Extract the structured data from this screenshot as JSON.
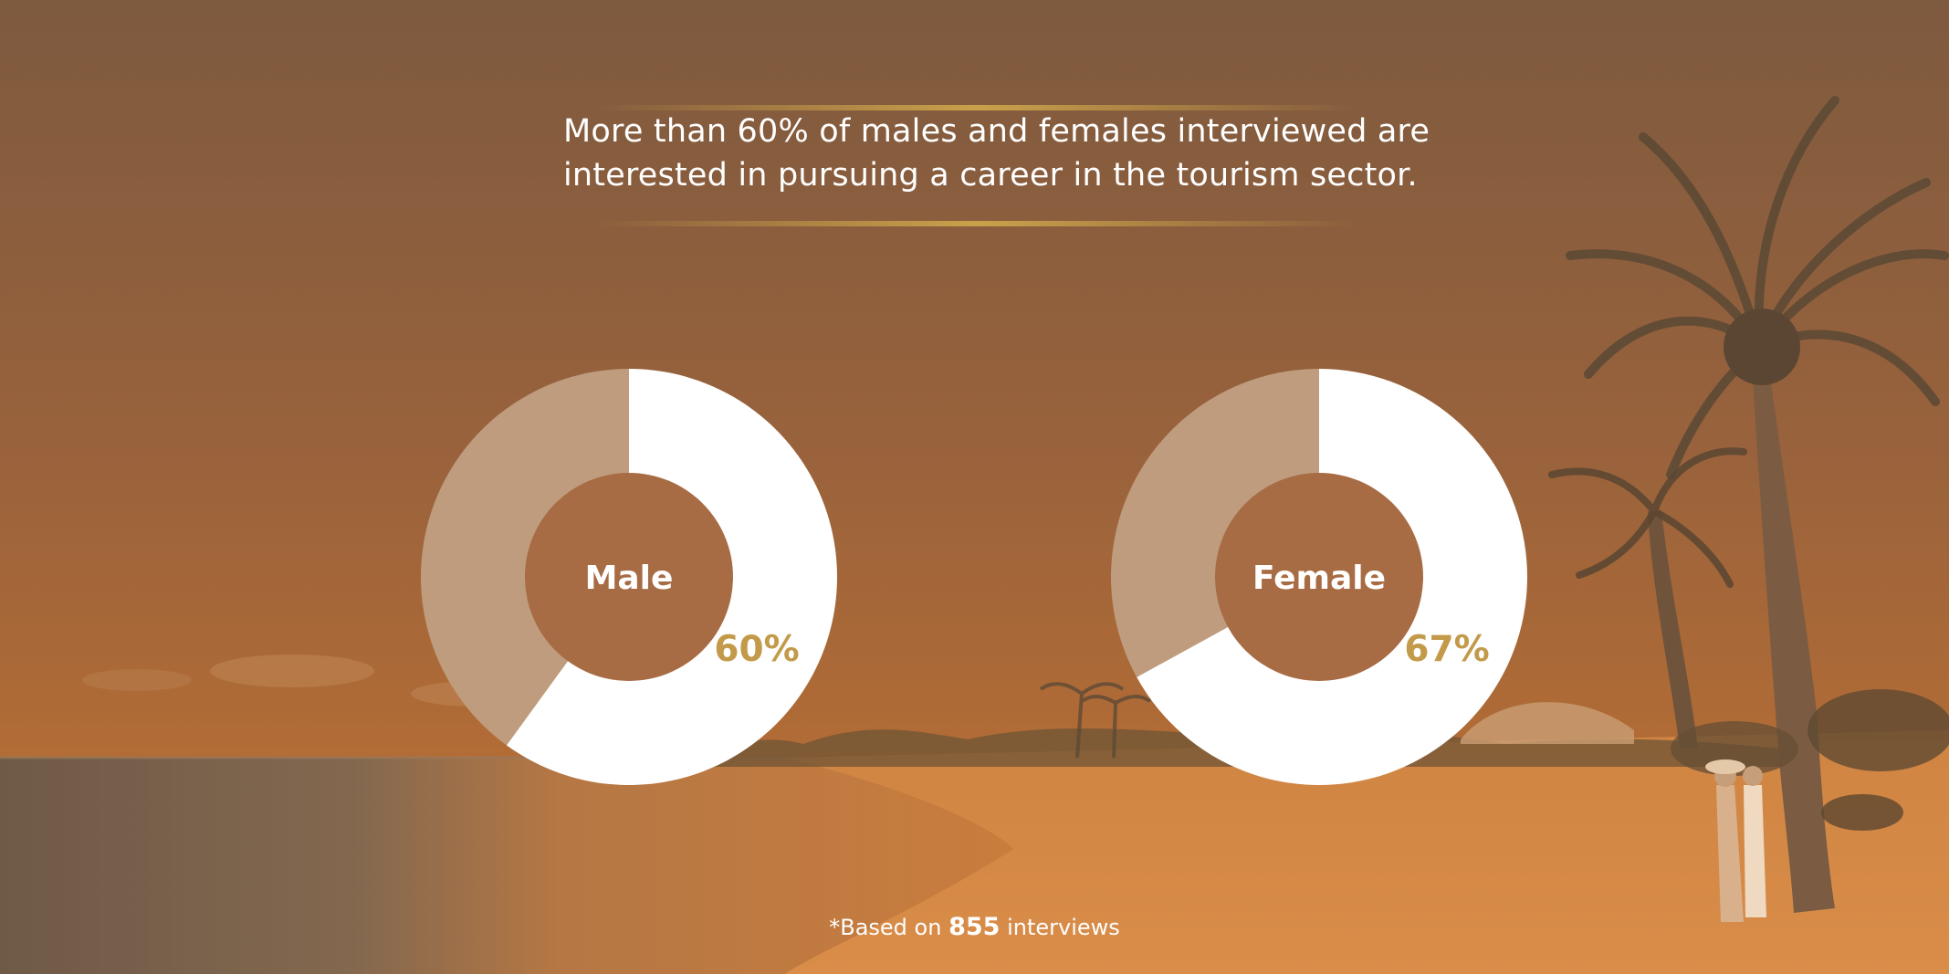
{
  "headline": {
    "line1": "More than 60% of males and females interviewed are",
    "line2": "interested in pursuing a career in the tourism sector."
  },
  "footnote": {
    "prefix": "*Based on ",
    "count": "855",
    "suffix": " interviews"
  },
  "colors": {
    "highlight": "#ffffff",
    "remainder": "#bf9c7e",
    "center": "#a86c44",
    "percent_label": "#c39a4a",
    "accent_gold": "#c9a14a"
  },
  "chart_data": [
    {
      "type": "pie",
      "subtype": "donut",
      "center_label": "Male",
      "value": 60,
      "value_label": "60%",
      "total": 100
    },
    {
      "type": "pie",
      "subtype": "donut",
      "center_label": "Female",
      "value": 67,
      "value_label": "67%",
      "total": 100
    }
  ]
}
